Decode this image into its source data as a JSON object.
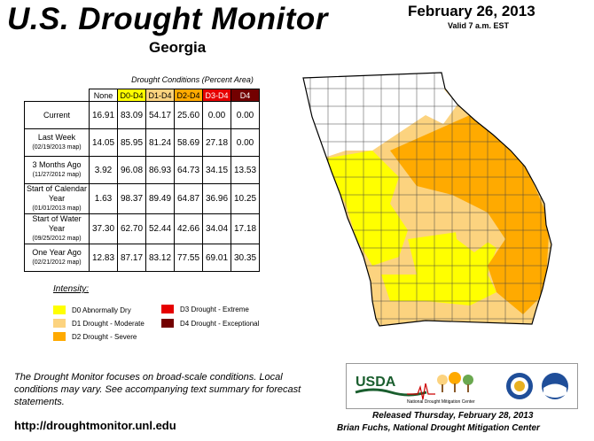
{
  "header": {
    "title": "U.S. Drought Monitor",
    "state": "Georgia",
    "date": "February 26, 2013",
    "valid": "Valid 7 a.m. EST"
  },
  "table": {
    "caption": "Drought Conditions (Percent Area)",
    "columns": [
      "None",
      "D0-D4",
      "D1-D4",
      "D2-D4",
      "D3-D4",
      "D4"
    ],
    "rows": [
      {
        "label": "Current",
        "sub": "",
        "values": [
          "16.91",
          "83.09",
          "54.17",
          "25.60",
          "0.00",
          "0.00"
        ]
      },
      {
        "label": "Last Week",
        "sub": "(02/19/2013 map)",
        "values": [
          "14.05",
          "85.95",
          "81.24",
          "58.69",
          "27.18",
          "0.00"
        ]
      },
      {
        "label": "3 Months Ago",
        "sub": "(11/27/2012 map)",
        "values": [
          "3.92",
          "96.08",
          "86.93",
          "64.73",
          "34.15",
          "13.53"
        ]
      },
      {
        "label": "Start of Calendar Year",
        "sub": "(01/01/2013 map)",
        "values": [
          "1.63",
          "98.37",
          "89.49",
          "64.87",
          "36.96",
          "10.25"
        ]
      },
      {
        "label": "Start of Water Year",
        "sub": "(09/25/2012 map)",
        "values": [
          "37.30",
          "62.70",
          "52.44",
          "42.66",
          "34.04",
          "17.18"
        ]
      },
      {
        "label": "One Year Ago",
        "sub": "(02/21/2012 map)",
        "values": [
          "12.83",
          "87.17",
          "83.12",
          "77.55",
          "69.01",
          "30.35"
        ]
      }
    ]
  },
  "legend": {
    "title": "Intensity:",
    "items": [
      {
        "label": "D0 Abnormally Dry",
        "color": "#ffff00"
      },
      {
        "label": "D1 Drought - Moderate",
        "color": "#fcd37f"
      },
      {
        "label": "D2 Drought - Severe",
        "color": "#ffaa00"
      },
      {
        "label": "D3 Drought - Extreme",
        "color": "#e60000"
      },
      {
        "label": "D4 Drought - Exceptional",
        "color": "#730000"
      }
    ]
  },
  "footer": {
    "note": "The Drought Monitor focuses on broad-scale conditions. Local conditions may vary. See accompanying text summary for forecast statements.",
    "url": "http://droughtmonitor.unl.edu",
    "released": "Released Thursday, February 28, 2013",
    "author": "Brian Fuchs, National Drought Mitigation Center"
  },
  "logos": {
    "usda": "USDA",
    "ndmc": "National Drought Mitigation Center"
  },
  "colors": {
    "none": "#ffffff",
    "d0": "#ffff00",
    "d1": "#fcd37f",
    "d2": "#ffaa00"
  }
}
